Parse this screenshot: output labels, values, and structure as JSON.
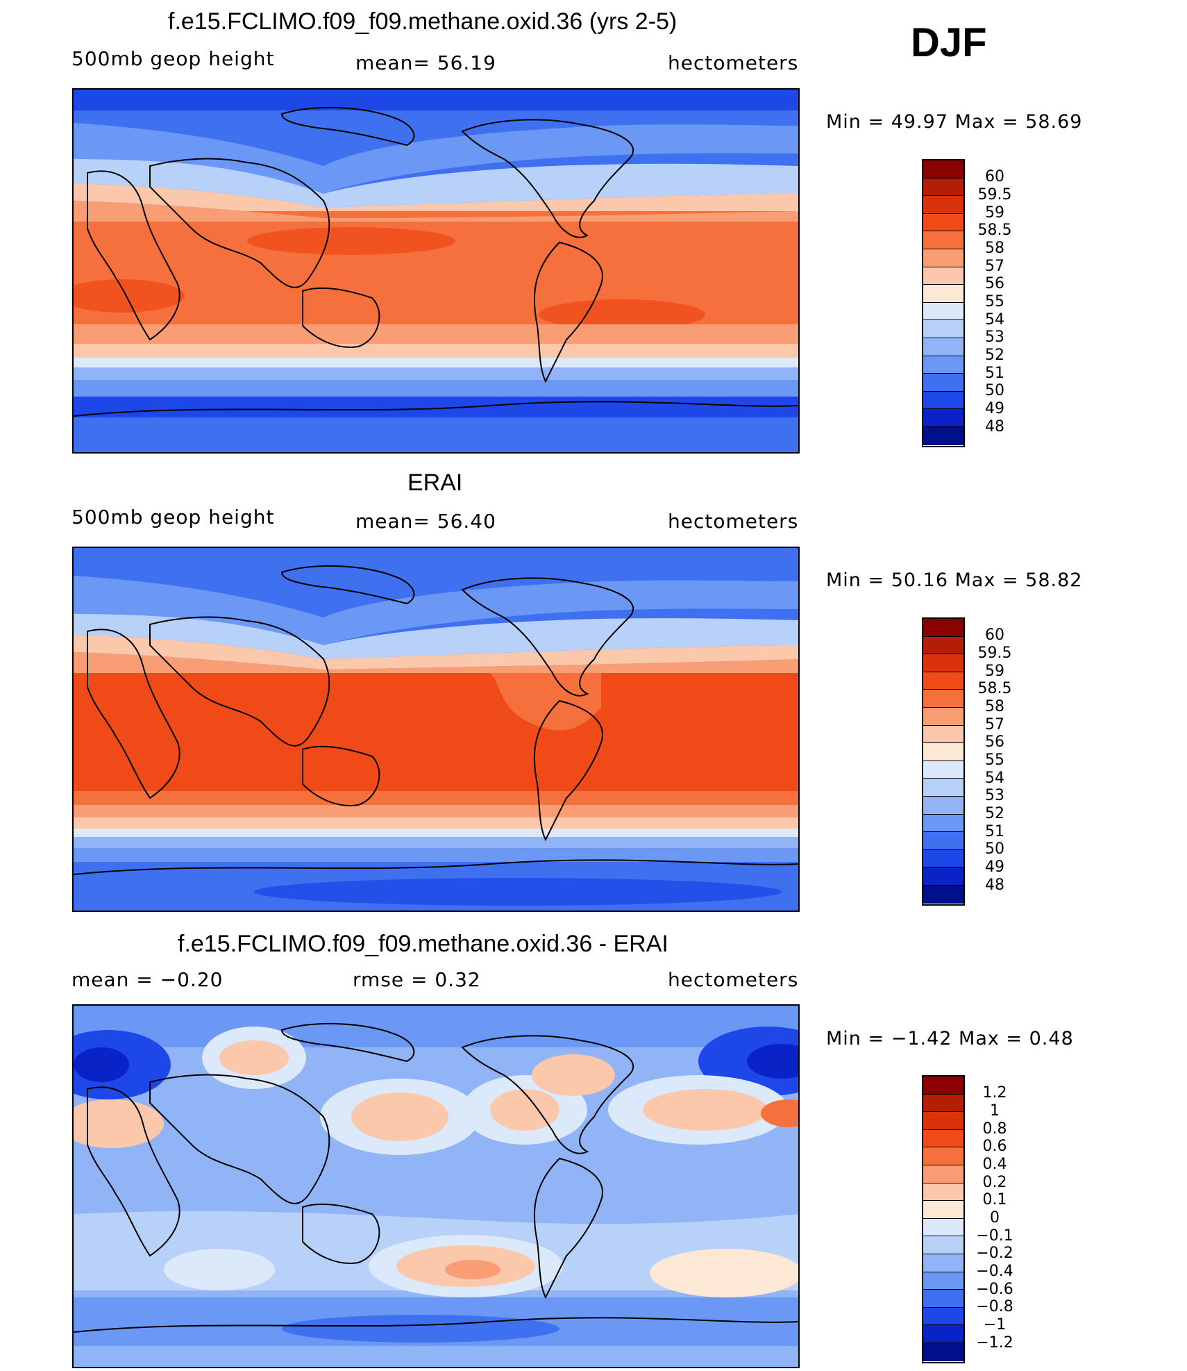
{
  "season": "DJF",
  "panels": [
    {
      "title": "f.e15.FCLIMO.f09_f09.methane.oxid.36 (yrs 2-5)",
      "left": "500mb  geop  height",
      "center": "mean=   56.19",
      "right": "hectometers",
      "minmax": "Min  =    49.97  Max  =    58.69"
    },
    {
      "title": "ERAI",
      "left": "500mb  geop  height",
      "center": "mean=   56.40",
      "right": "hectometers",
      "minmax": "Min  =    50.16  Max  =    58.82"
    },
    {
      "title": "f.e15.FCLIMO.f09_f09.methane.oxid.36 - ERAI",
      "left": "mean  =    −0.20",
      "center": "rmse  =     0.32",
      "right": "hectometers",
      "minmax": "Min  =    −1.42  Max  =     0.48"
    }
  ],
  "colorbars": {
    "abs_labels": [
      "60",
      "59.5",
      "59",
      "58.5",
      "58",
      "57",
      "56",
      "55",
      "54",
      "53",
      "52",
      "51",
      "50",
      "49",
      "48"
    ],
    "diff_labels": [
      "1.2",
      "1",
      "0.8",
      "0.6",
      "0.4",
      "0.2",
      "0.1",
      "0",
      "−0.1",
      "−0.2",
      "−0.4",
      "−0.6",
      "−0.8",
      "−1",
      "−1.2"
    ],
    "colors_top_to_bottom": [
      "#8b0000",
      "#b41e05",
      "#d8330a",
      "#ef4a17",
      "#f6703d",
      "#f99d74",
      "#fbc8ab",
      "#fde8d6",
      "#dbe9fb",
      "#b8d1f8",
      "#91b4f6",
      "#6a98f4",
      "#3f70ef",
      "#1d48e7",
      "#0a23c6",
      "#00108a"
    ]
  },
  "map_colors": {
    "deep_blue": "#0a23c6",
    "blue": "#1d48e7",
    "mid_blue": "#3f70ef",
    "light_blue": "#6a98f4",
    "pale_blue": "#91b4f6",
    "very_pale_blue": "#b8d1f8",
    "ice_blue": "#dbe9fb",
    "cream": "#fde8d6",
    "peach": "#fbc8ab",
    "light_orange": "#f99d74",
    "orange": "#f6703d",
    "red_orange": "#ef4a17",
    "dark_red": "#8b0000"
  }
}
